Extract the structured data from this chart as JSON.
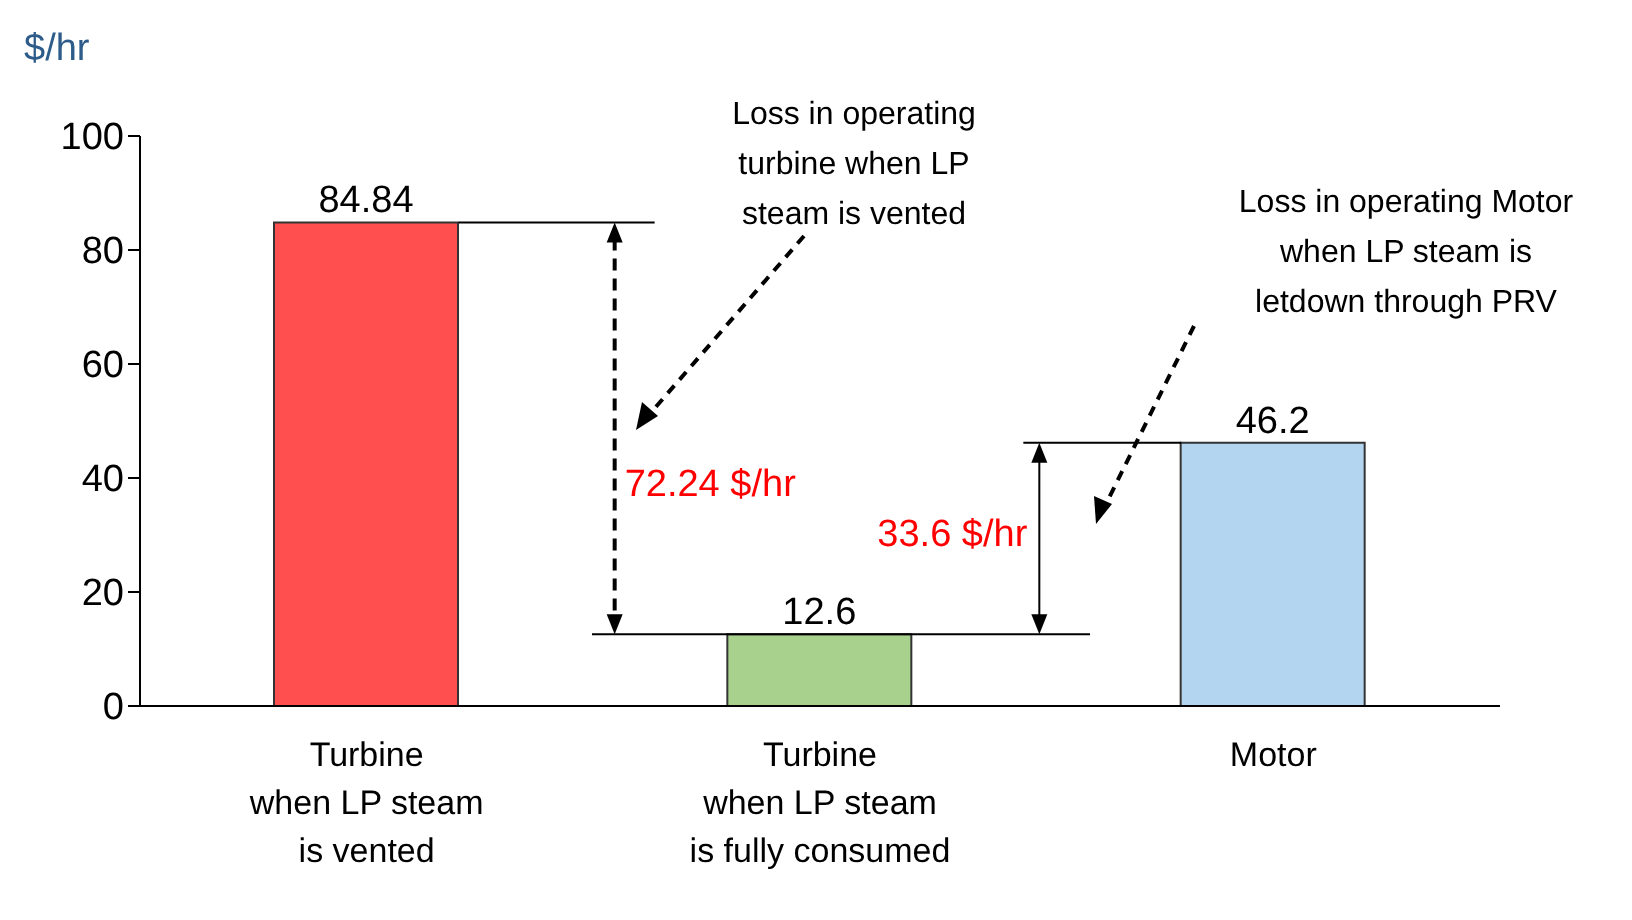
{
  "chart_data": {
    "type": "bar",
    "ylabel": "$/hr",
    "categories": [
      "Turbine\nwhen LP steam\nis vented",
      "Turbine\nwhen LP steam\nis fully consumed",
      "Motor"
    ],
    "values": [
      84.84,
      12.6,
      46.2
    ],
    "colors": [
      "#ff4f4f",
      "#a9d18e",
      "#b4d5f0"
    ],
    "ylim": [
      0,
      100
    ],
    "yticks": [
      0,
      20,
      40,
      60,
      80,
      100
    ],
    "data_labels": true,
    "annotations": [
      "Loss in operating\nturbine when LP\nsteam is vented",
      "Loss in operating Motor\nwhen LP steam is\nletdown through  PRV",
      "72.24 $/hr",
      "33.6 $/hr"
    ]
  }
}
